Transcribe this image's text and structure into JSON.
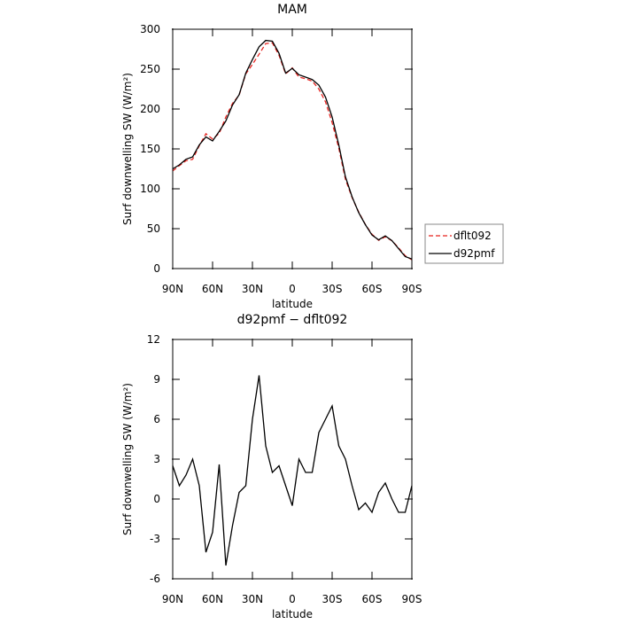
{
  "chart_data": [
    {
      "type": "line",
      "title": "MAM",
      "xlabel": "latitude",
      "ylabel": "Surf downwelling SW (W/m²)",
      "x": [
        90,
        85,
        80,
        75,
        70,
        65,
        60,
        55,
        50,
        45,
        40,
        35,
        30,
        25,
        20,
        15,
        10,
        5,
        0,
        -5,
        -10,
        -15,
        -20,
        -25,
        -30,
        -35,
        -40,
        -45,
        -50,
        -55,
        -60,
        -65,
        -70,
        -75,
        -80,
        -85,
        -90
      ],
      "xlim": [
        90,
        -90
      ],
      "xticks": [
        {
          "value": 90,
          "label": "90N"
        },
        {
          "value": 60,
          "label": "60N"
        },
        {
          "value": 30,
          "label": "30N"
        },
        0,
        {
          "value": -30,
          "label": "30S"
        },
        {
          "value": -60,
          "label": "60S"
        },
        {
          "value": -90,
          "label": "90S"
        }
      ],
      "ylim": [
        0,
        300
      ],
      "yticks": [
        0,
        50,
        100,
        150,
        200,
        250,
        300
      ],
      "legend": "right",
      "series": [
        {
          "name": "dflt092",
          "color": "#e8231f",
          "linestyle": "dashed",
          "values": [
            122.5,
            129,
            135.2,
            137,
            154,
            169,
            162.5,
            169.4,
            190,
            207,
            217.5,
            244,
            256,
            268.7,
            282,
            283,
            267.5,
            244,
            251.5,
            240,
            238,
            235,
            225,
            209,
            183,
            151,
            112,
            89,
            70.8,
            55.3,
            43,
            35.5,
            39.8,
            35,
            26,
            16,
            11
          ]
        },
        {
          "name": "d92pmf",
          "color": "#000000",
          "linestyle": "solid",
          "values": [
            125,
            130,
            137,
            140,
            155,
            165,
            160,
            172,
            185,
            205,
            218,
            245,
            262,
            278,
            286,
            285,
            270,
            245,
            251,
            243,
            240,
            237,
            230,
            215,
            190,
            155,
            115,
            90,
            70,
            55,
            42,
            36,
            41,
            35,
            25,
            15,
            12
          ]
        }
      ]
    },
    {
      "type": "line",
      "title": "d92pmf − dflt092",
      "xlabel": "latitude",
      "ylabel": "Surf downwelling SW (W/m²)",
      "x": [
        90,
        85,
        80,
        75,
        70,
        65,
        60,
        55,
        50,
        45,
        40,
        35,
        30,
        25,
        20,
        15,
        10,
        5,
        0,
        -5,
        -10,
        -15,
        -20,
        -25,
        -30,
        -35,
        -40,
        -45,
        -50,
        -55,
        -60,
        -65,
        -70,
        -75,
        -80,
        -85,
        -90
      ],
      "xlim": [
        90,
        -90
      ],
      "xticks": [
        {
          "value": 90,
          "label": "90N"
        },
        {
          "value": 60,
          "label": "60N"
        },
        {
          "value": 30,
          "label": "30N"
        },
        0,
        {
          "value": -30,
          "label": "30S"
        },
        {
          "value": -60,
          "label": "60S"
        },
        {
          "value": -90,
          "label": "90S"
        }
      ],
      "ylim": [
        -6,
        12
      ],
      "yticks": [
        -6,
        -3,
        0,
        3,
        6,
        9,
        12
      ],
      "series": [
        {
          "color": "#000000",
          "linestyle": "solid",
          "values": [
            2.5,
            1,
            1.8,
            3,
            1,
            -4,
            -2.5,
            2.6,
            -5,
            -2,
            0.5,
            1,
            6,
            9.3,
            4,
            2,
            2.5,
            1,
            -0.5,
            3,
            2,
            2,
            5,
            6,
            7,
            4,
            3,
            1,
            -0.8,
            -0.3,
            -1,
            0.5,
            1.2,
            0,
            -1,
            -1,
            1
          ]
        }
      ]
    }
  ]
}
